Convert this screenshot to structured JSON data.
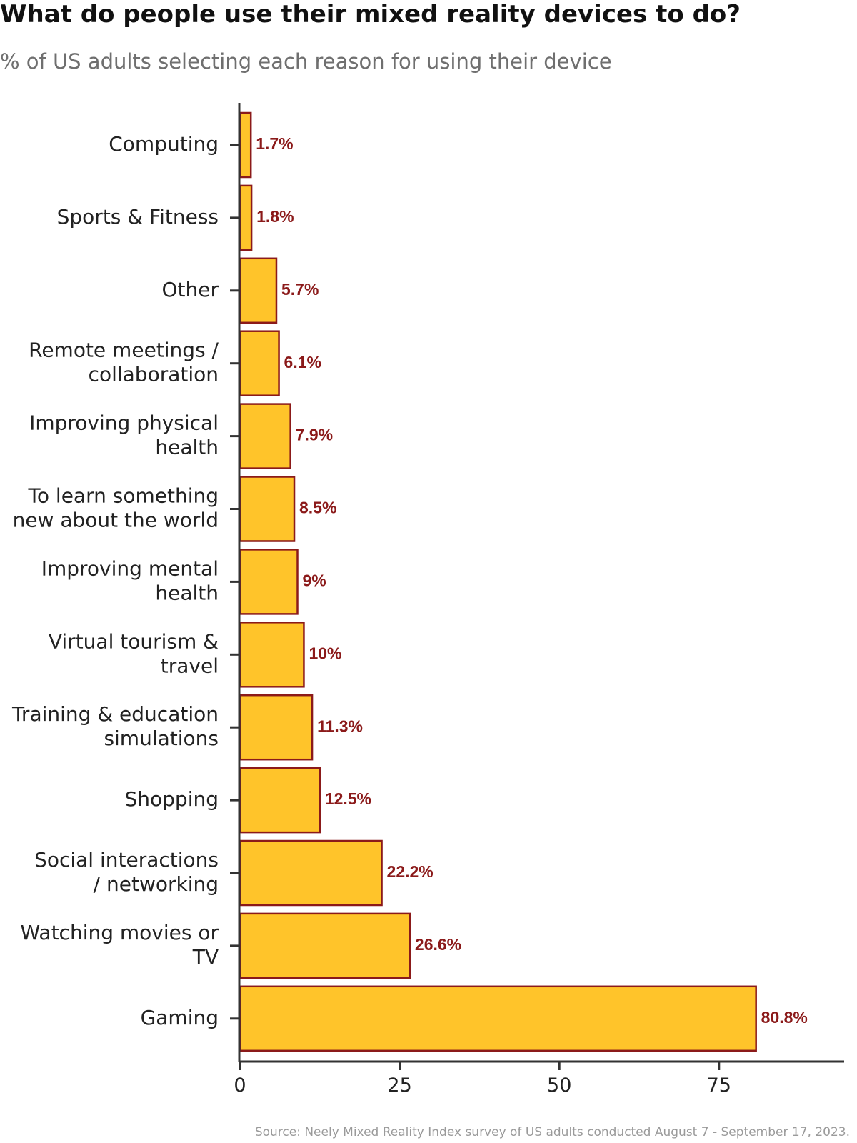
{
  "title": "What do people use their mixed reality devices to do?",
  "subtitle": "% of US adults selecting each reason for using their device",
  "source": "Source: Neely Mixed Reality Index survey of US adults conducted August 7 - September 17, 2023.",
  "colors": {
    "bar_fill": "#FFC42A",
    "bar_stroke": "#8B1A1A",
    "value_label": "#8B1A1A",
    "axis": "#333333",
    "category_label": "#222222"
  },
  "chart_data": {
    "type": "bar",
    "orientation": "horizontal",
    "title": "What do people use their mixed reality devices to do?",
    "subtitle": "% of US adults selecting each reason for using their device",
    "xlim": [
      0,
      92
    ],
    "x_ticks": [
      0,
      25,
      50,
      75
    ],
    "x_tick_labels": [
      "0",
      "25",
      "50",
      "75"
    ],
    "grid": false,
    "categories": [
      [
        "Computing"
      ],
      [
        "Sports & Fitness"
      ],
      [
        "Other"
      ],
      [
        "Remote meetings /",
        "collaboration"
      ],
      [
        "Improving physical",
        "health"
      ],
      [
        "To learn something",
        "new about the world"
      ],
      [
        "Improving mental",
        "health"
      ],
      [
        "Virtual tourism &",
        "travel"
      ],
      [
        "Training & education",
        "simulations"
      ],
      [
        "Shopping"
      ],
      [
        "Social interactions",
        "/ networking"
      ],
      [
        "Watching movies or",
        "TV"
      ],
      [
        "Gaming"
      ]
    ],
    "values": [
      1.7,
      1.8,
      5.7,
      6.1,
      7.9,
      8.5,
      9,
      10,
      11.3,
      12.5,
      22.2,
      26.6,
      80.8
    ],
    "value_labels": [
      "1.7%",
      "1.8%",
      "5.7%",
      "6.1%",
      "7.9%",
      "8.5%",
      "9%",
      "10%",
      "11.3%",
      "12.5%",
      "22.2%",
      "26.6%",
      "80.8%"
    ]
  }
}
